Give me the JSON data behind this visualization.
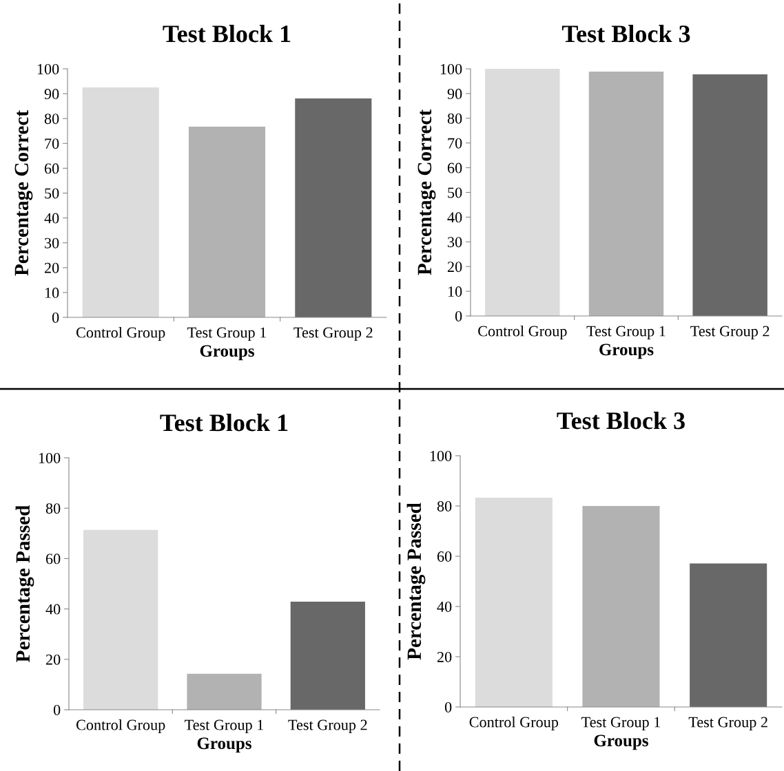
{
  "chart_data": [
    {
      "type": "bar",
      "title": "Test Block 1",
      "xlabel": "Groups",
      "ylabel": "Percentage Correct",
      "categories": [
        "Control Group",
        "Test Group 1",
        "Test Group 2"
      ],
      "values": [
        92.5,
        76.7,
        88.1
      ],
      "colors": [
        "#dcdcdc",
        "#b2b2b2",
        "#686868"
      ],
      "ylim": [
        0,
        100
      ],
      "yticks": [
        0,
        10,
        20,
        30,
        40,
        50,
        60,
        70,
        80,
        90,
        100
      ]
    },
    {
      "type": "bar",
      "title": "Test Block 3",
      "xlabel": "Groups",
      "ylabel": "Percentage Correct",
      "categories": [
        "Control Group",
        "Test Group 1",
        "Test Group 2"
      ],
      "values": [
        100,
        98.9,
        97.8
      ],
      "colors": [
        "#dcdcdc",
        "#b2b2b2",
        "#686868"
      ],
      "ylim": [
        0,
        100
      ],
      "yticks": [
        0,
        10,
        20,
        30,
        40,
        50,
        60,
        70,
        80,
        90,
        100
      ]
    },
    {
      "type": "bar",
      "title": "Test Block 1",
      "xlabel": "Groups",
      "ylabel": "Percentage Passed",
      "categories": [
        "Control Group",
        "Test Group 1",
        "Test Group 2"
      ],
      "values": [
        71.4,
        14.3,
        42.9
      ],
      "colors": [
        "#dcdcdc",
        "#b2b2b2",
        "#686868"
      ],
      "ylim": [
        0,
        100
      ],
      "yticks": [
        0,
        20,
        40,
        60,
        80,
        100
      ]
    },
    {
      "type": "bar",
      "title": "Test Block 3",
      "xlabel": "Groups",
      "ylabel": "Percentage Passed",
      "categories": [
        "Control Group",
        "Test Group 1",
        "Test Group 2"
      ],
      "values": [
        83.3,
        80,
        57.1
      ],
      "colors": [
        "#dcdcdc",
        "#b2b2b2",
        "#686868"
      ],
      "ylim": [
        0,
        100
      ],
      "yticks": [
        0,
        20,
        40,
        60,
        80,
        100
      ]
    }
  ]
}
